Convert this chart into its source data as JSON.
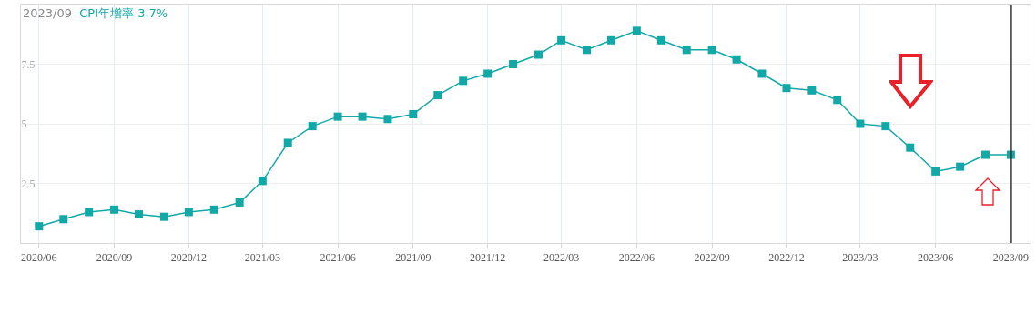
{
  "chart_data": {
    "type": "line",
    "title": "2023/09",
    "subtitle": "CPI年增率 3.7%",
    "x": [
      "2020-06",
      "2020-07",
      "2020-08",
      "2020-09",
      "2020-10",
      "2020-11",
      "2020-12",
      "2021-01",
      "2021-02",
      "2021-03",
      "2021-04",
      "2021-05",
      "2021-06",
      "2021-07",
      "2021-08",
      "2021-09",
      "2021-10",
      "2021-11",
      "2021-12",
      "2022-01",
      "2022-02",
      "2022-03",
      "2022-04",
      "2022-05",
      "2022-06",
      "2022-07",
      "2022-08",
      "2022-09",
      "2022-10",
      "2022-11",
      "2022-12",
      "2023-01",
      "2023-02",
      "2023-03",
      "2023-04",
      "2023-05",
      "2023-06",
      "2023-07",
      "2023-08",
      "2023-09"
    ],
    "series": [
      {
        "color": "#13a8a8",
        "values": [
          0.7,
          1.0,
          1.3,
          1.4,
          1.2,
          1.1,
          1.3,
          1.4,
          1.7,
          2.6,
          4.2,
          4.9,
          5.3,
          5.3,
          5.2,
          5.4,
          6.2,
          6.8,
          7.1,
          7.5,
          7.9,
          8.5,
          8.1,
          8.5,
          8.9,
          8.5,
          8.1,
          8.1,
          7.7,
          7.1,
          6.5,
          6.4,
          6.0,
          5.0,
          4.9,
          4.0,
          3.0,
          3.2,
          3.7,
          3.7
        ]
      }
    ],
    "xlim": [
      "2020-05-10",
      "2023-09-25"
    ],
    "xticks": [
      {
        "value": "2020-06",
        "label": "2020/06"
      },
      {
        "value": "2020-09",
        "label": "2020/09"
      },
      {
        "value": "2020-12",
        "label": "2020/12"
      },
      {
        "value": "2021-03",
        "label": "2021/03"
      },
      {
        "value": "2021-06",
        "label": "2021/06"
      },
      {
        "value": "2021-09",
        "label": "2021/09"
      },
      {
        "value": "2021-12",
        "label": "2021/12"
      },
      {
        "value": "2022-03",
        "label": "2022/03"
      },
      {
        "value": "2022-06",
        "label": "2022/06"
      },
      {
        "value": "2022-09",
        "label": "2022/09"
      },
      {
        "value": "2022-12",
        "label": "2022/12"
      },
      {
        "value": "2023-03",
        "label": "2023/03"
      },
      {
        "value": "2023-06",
        "label": "2023/06"
      },
      {
        "value": "2023-09",
        "label": "2023/09"
      }
    ],
    "ylim": [
      0,
      10
    ],
    "yticks": [
      2.5,
      5,
      7.5
    ],
    "ref_lines": [
      {
        "axis": "x",
        "value": "2023-09",
        "color": "#333333"
      }
    ],
    "grid": true,
    "marker": "square",
    "line_style": "solid"
  }
}
